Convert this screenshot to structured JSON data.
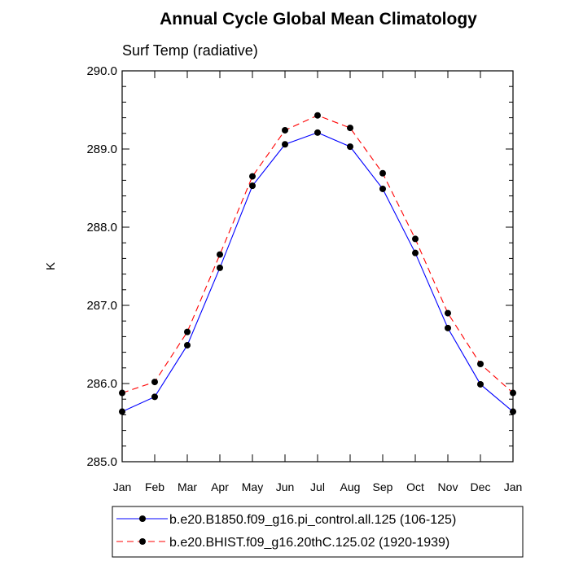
{
  "chart_data": {
    "type": "line",
    "title": "Annual Cycle Global Mean Climatology",
    "subtitle": "Surf Temp (radiative)",
    "xlabel": "",
    "ylabel": "K",
    "categories": [
      "Jan",
      "Feb",
      "Mar",
      "Apr",
      "May",
      "Jun",
      "Jul",
      "Aug",
      "Sep",
      "Oct",
      "Nov",
      "Dec",
      "Jan"
    ],
    "ylim": [
      285.0,
      290.0
    ],
    "yticks": [
      "285.0",
      "286.0",
      "287.0",
      "288.0",
      "289.0",
      "290.0"
    ],
    "grid": false,
    "legend_position": "bottom",
    "series": [
      {
        "name": "b.e20.B1850.f09_g16.pi_control.all.125 (106-125)",
        "color": "#0000ff",
        "line_style": "solid",
        "marker": "filled-circle",
        "values": [
          285.64,
          285.83,
          286.49,
          287.48,
          288.53,
          289.06,
          289.21,
          289.03,
          288.49,
          287.67,
          286.71,
          285.99,
          285.64
        ]
      },
      {
        "name": "b.e20.BHIST.f09_g16.20thC.125.02 (1920-1939)",
        "color": "#ff0000",
        "line_style": "dashed",
        "marker": "filled-circle",
        "values": [
          285.88,
          286.02,
          286.66,
          287.65,
          288.65,
          289.24,
          289.43,
          289.27,
          288.69,
          287.85,
          286.9,
          286.25,
          285.88
        ]
      }
    ]
  }
}
